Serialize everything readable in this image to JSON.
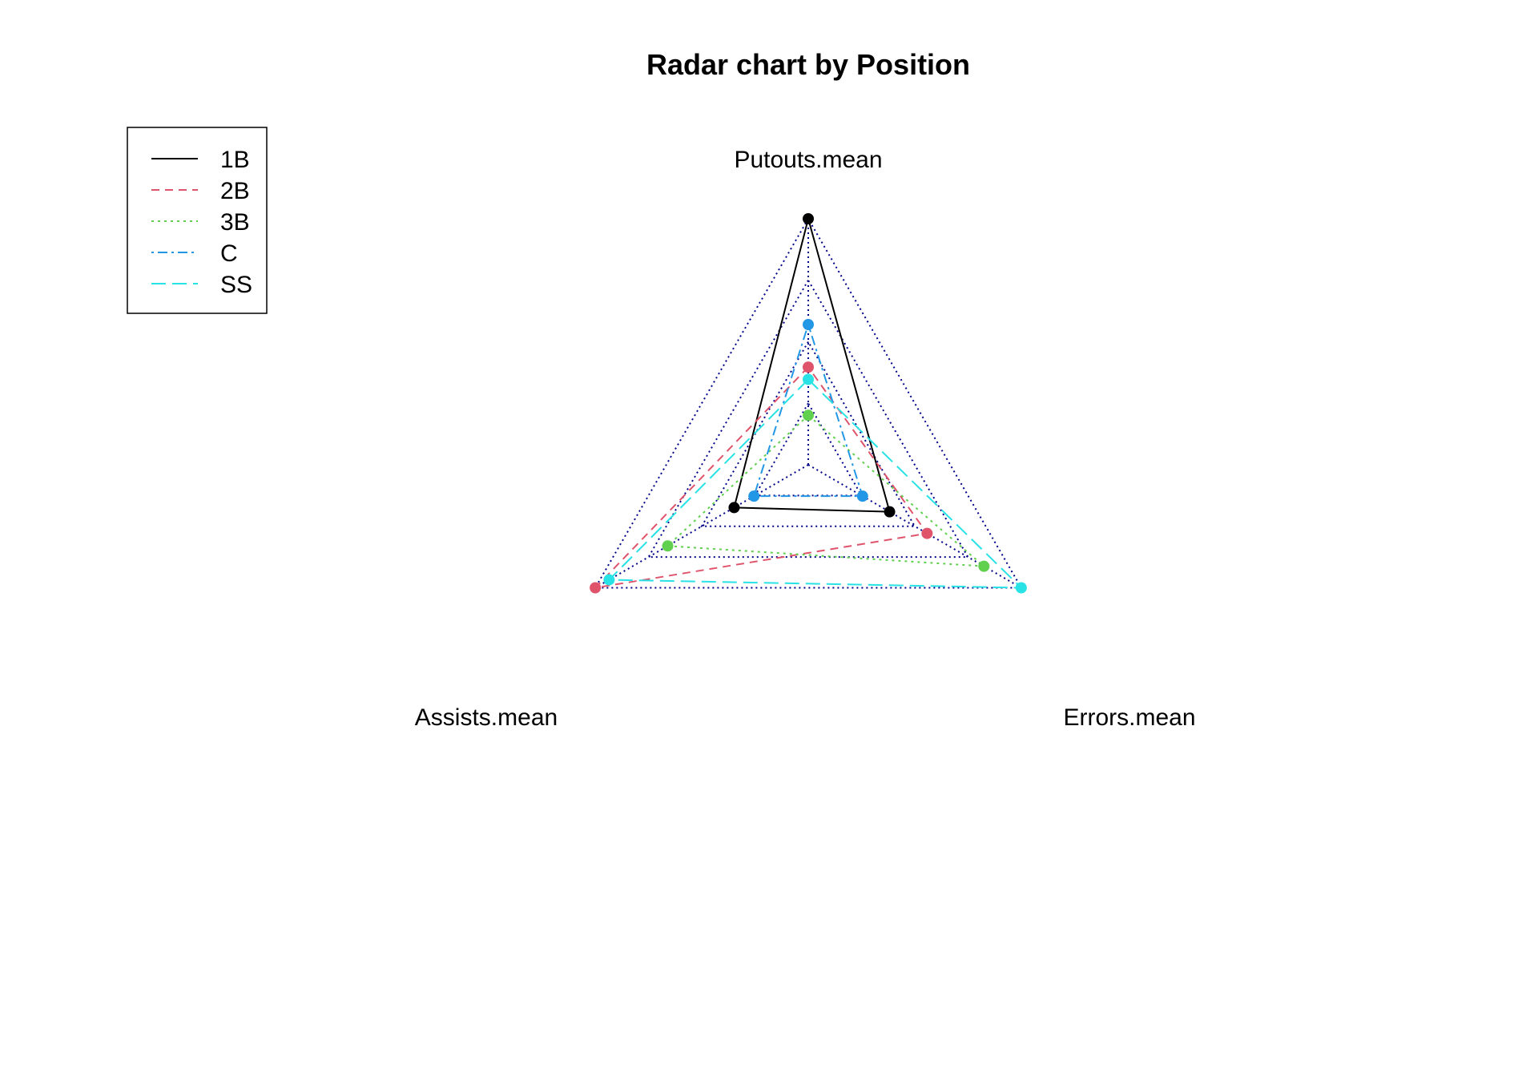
{
  "chart_data": {
    "type": "radar",
    "title": "Radar chart by Position",
    "axes": [
      "Putouts.mean",
      "Assists.mean",
      "Errors.mean"
    ],
    "scale": {
      "min": 0,
      "max": 1,
      "grid_levels": 4
    },
    "grid_color": "#00008B",
    "legend_position": "top-left",
    "series": [
      {
        "name": "1B",
        "color": "#000000",
        "dash": "solid",
        "values": [
          1.0,
          0.348,
          0.382
        ]
      },
      {
        "name": "2B",
        "color": "#DF536B",
        "dash": "dashed",
        "values": [
          0.397,
          1.0,
          0.558
        ]
      },
      {
        "name": "3B",
        "color": "#61D04F",
        "dash": "dotted",
        "values": [
          0.201,
          0.66,
          0.825
        ]
      },
      {
        "name": "C",
        "color": "#2297E6",
        "dash": "dotdash",
        "values": [
          0.57,
          0.255,
          0.255
        ]
      },
      {
        "name": "SS",
        "color": "#28E2E5",
        "dash": "longdash",
        "values": [
          0.347,
          0.935,
          1.0
        ]
      }
    ]
  }
}
